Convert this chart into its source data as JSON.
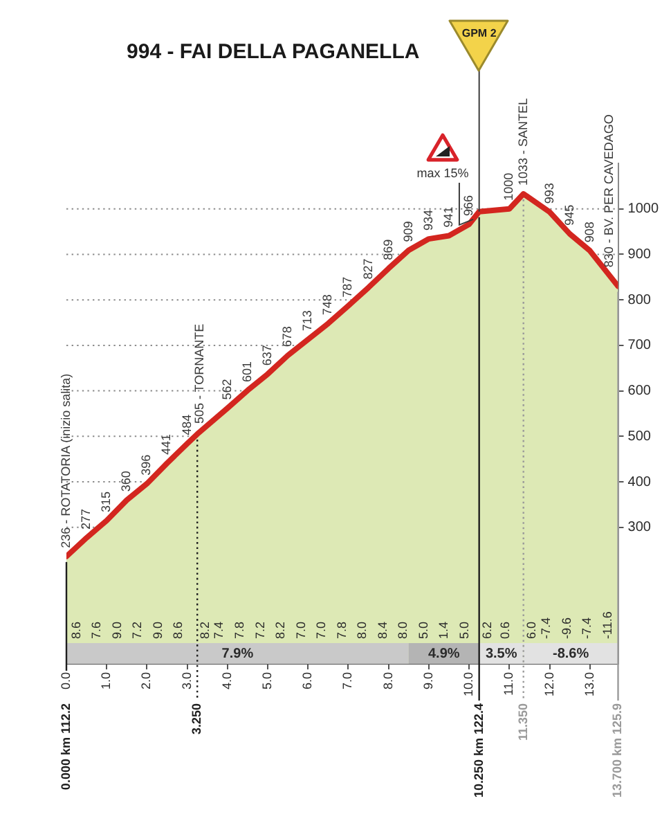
{
  "chart_data": {
    "type": "area",
    "title": "994 - FAI DELLA PAGANELLA",
    "x": [
      0,
      0.5,
      1,
      1.5,
      2,
      2.5,
      3,
      3.25,
      4,
      4.5,
      5,
      5.5,
      6,
      6.5,
      7,
      7.5,
      8,
      8.5,
      9,
      9.5,
      10,
      10.25,
      11,
      11.35,
      12,
      12.5,
      13,
      13.7
    ],
    "series": [
      {
        "color": "#dde9b5",
        "values": [
          236,
          277,
          315,
          360,
          396,
          441,
          484,
          505,
          562,
          601,
          637,
          678,
          713,
          748,
          787,
          827,
          869,
          909,
          934,
          941,
          966,
          994,
          1000,
          1033,
          993,
          945,
          908,
          830
        ],
        "value_labels": [
          "236 - ROTATORIA (inizio salita)",
          "277",
          "315",
          "360",
          "396",
          "441",
          "484",
          "505 - TORNANTE",
          "562",
          "601",
          "637",
          "678",
          "713",
          "748",
          "787",
          "827",
          "869",
          "909",
          "934",
          "941",
          "966",
          null,
          "1000",
          "1033 - SANTEL",
          "993",
          "945",
          "908",
          "830 - BV. PER CAVEDAGO"
        ]
      }
    ],
    "xlim": [
      0,
      13.7
    ],
    "xticks": [
      {
        "value": 0,
        "label": "0.0"
      },
      {
        "value": 1,
        "label": "1.0"
      },
      {
        "value": 2,
        "label": "2.0"
      },
      {
        "value": 3,
        "label": "3.0"
      },
      {
        "value": 4,
        "label": "4.0"
      },
      {
        "value": 5,
        "label": "5.0"
      },
      {
        "value": 6,
        "label": "6.0"
      },
      {
        "value": 7,
        "label": "7.0"
      },
      {
        "value": 8,
        "label": "8.0"
      },
      {
        "value": 9,
        "label": "9.0"
      },
      {
        "value": 10,
        "label": "10.0"
      },
      {
        "value": 11,
        "label": "11.0"
      },
      {
        "value": 12,
        "label": "12.0"
      },
      {
        "value": 13,
        "label": "13.0"
      }
    ],
    "ylim": [
      0,
      1100
    ],
    "yticks": [
      300,
      400,
      500,
      600,
      700,
      800,
      900,
      1000
    ],
    "grid": "y",
    "ref_lines": [
      {
        "axis": "x",
        "value": 0,
        "label": "0.000 km 112.2"
      },
      {
        "axis": "x",
        "value": 3.25,
        "label": "3.250",
        "line_style": "dotted"
      },
      {
        "axis": "x",
        "value": 10.25,
        "label": "10.250 km 122.4"
      },
      {
        "axis": "x",
        "value": 11.35,
        "label": "11.350",
        "line_style": "dotted",
        "color": "#9a9a9a"
      },
      {
        "axis": "x",
        "value": 13.7,
        "label": "13.700 km 125.9",
        "color": "#9a9a9a"
      }
    ],
    "bands": [
      {
        "axis": "x",
        "from": 0,
        "to": 8.5,
        "label": "7.9%",
        "color": "#c9c9c9"
      },
      {
        "axis": "x",
        "from": 8.5,
        "to": 10.25,
        "label": "4.9%",
        "color": "#b4b4b4"
      },
      {
        "axis": "x",
        "from": 10.25,
        "to": 11.35,
        "label": "3.5%",
        "color": "#e2e2e2"
      },
      {
        "axis": "x",
        "from": 11.35,
        "to": 13.7,
        "label": "-8.6%",
        "color": "#e2e2e2"
      }
    ],
    "annotations": [
      {
        "text": "max 15%",
        "x": 10.1,
        "y": 977
      },
      {
        "text": "GPM 2",
        "x": 10.25,
        "y": 994
      },
      "8.6",
      "7.6",
      "9.0",
      "7.2",
      "9.0",
      "8.6",
      "8.2",
      "7.4",
      "7.8",
      "7.2",
      "8.2",
      "7.0",
      "7.0",
      "7.8",
      "8.0",
      "8.4",
      "8.0",
      "5.0",
      "1.4",
      "5.0",
      "6.2",
      "0.6",
      "6.0",
      "-7.4",
      "-9.6",
      "-7.4",
      "-11.6"
    ]
  }
}
